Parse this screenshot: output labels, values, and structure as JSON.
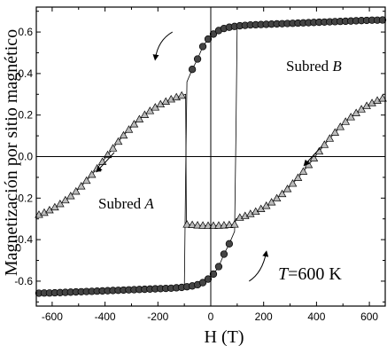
{
  "chart_data": {
    "type": "scatter",
    "xlabel": "H (T)",
    "ylabel": "Magnetización por sitio magnético",
    "xlim": [
      -660,
      660
    ],
    "ylim": [
      -0.72,
      0.72
    ],
    "x_ticks": [
      -600,
      -400,
      -200,
      0,
      200,
      400,
      600
    ],
    "y_ticks": [
      -0.6,
      -0.4,
      -0.2,
      0.0,
      0.2,
      0.4,
      0.6
    ],
    "x_tick_labels": [
      "-600",
      "-400",
      "-200",
      "0",
      "200",
      "400",
      "600"
    ],
    "y_tick_labels": [
      "-0.6",
      "-0.4",
      "-0.2",
      "0.0",
      "0.2",
      "0.4",
      "0.6"
    ],
    "grid": false,
    "annotations": {
      "subred_b": {
        "text": "Subred ",
        "italic": "B"
      },
      "subred_a": {
        "text": "Subred ",
        "italic": "A"
      },
      "temperature": {
        "italic": "T",
        "text": "=600 K"
      }
    },
    "series": [
      {
        "marker": "circle",
        "color": "#444444",
        "branches": [
          {
            "x": [
              -650,
              -630,
              -610,
              -590,
              -570,
              -550,
              -530,
              -510,
              -490,
              -470,
              -450,
              -430,
              -410,
              -390,
              -370,
              -350,
              -330,
              -310,
              -290,
              -270,
              -250,
              -230,
              -210,
              -190,
              -170,
              -150,
              -130,
              -110,
              -90,
              -70,
              -50,
              -30,
              -10,
              10,
              30,
              50,
              70
            ],
            "y": [
              -0.658,
              -0.657,
              -0.657,
              -0.656,
              -0.655,
              -0.654,
              -0.653,
              -0.652,
              -0.651,
              -0.65,
              -0.649,
              -0.648,
              -0.647,
              -0.646,
              -0.645,
              -0.644,
              -0.643,
              -0.642,
              -0.641,
              -0.64,
              -0.639,
              -0.638,
              -0.637,
              -0.636,
              -0.635,
              -0.634,
              -0.632,
              -0.63,
              -0.627,
              -0.623,
              -0.617,
              -0.607,
              -0.59,
              -0.566,
              -0.53,
              -0.47,
              -0.42
            ]
          },
          {
            "x": [
              -70,
              -50,
              -30,
              -10,
              10,
              30,
              50,
              70,
              90,
              110,
              130,
              150,
              170,
              190,
              210,
              230,
              250,
              270,
              290,
              310,
              330,
              350,
              370,
              390,
              410,
              430,
              450,
              470,
              490,
              510,
              530,
              550,
              570,
              590,
              610,
              630,
              650
            ],
            "y": [
              0.42,
              0.47,
              0.53,
              0.566,
              0.59,
              0.607,
              0.617,
              0.623,
              0.627,
              0.63,
              0.632,
              0.634,
              0.635,
              0.636,
              0.637,
              0.638,
              0.639,
              0.64,
              0.641,
              0.642,
              0.643,
              0.644,
              0.645,
              0.646,
              0.647,
              0.648,
              0.649,
              0.65,
              0.651,
              0.652,
              0.653,
              0.654,
              0.655,
              0.656,
              0.657,
              0.657,
              0.658
            ]
          }
        ]
      },
      {
        "marker": "triangle",
        "color": "#bbbbbb",
        "branches": [
          {
            "x": [
              -650,
              -630,
              -610,
              -590,
              -570,
              -550,
              -530,
              -510,
              -490,
              -470,
              -450,
              -430,
              -410,
              -390,
              -370,
              -350,
              -330,
              -310,
              -290,
              -270,
              -250,
              -230,
              -210,
              -190,
              -170,
              -150,
              -130,
              -110
            ],
            "y": [
              -0.28,
              -0.27,
              -0.258,
              -0.244,
              -0.228,
              -0.21,
              -0.19,
              -0.168,
              -0.143,
              -0.116,
              -0.087,
              -0.057,
              -0.025,
              0.008,
              0.04,
              0.072,
              0.102,
              0.13,
              0.156,
              0.18,
              0.201,
              0.22,
              0.237,
              0.252,
              0.265,
              0.276,
              0.286,
              0.294
            ]
          },
          {
            "x": [
              -90,
              -70,
              -50,
              -30,
              -10,
              10,
              30,
              50,
              70,
              90
            ],
            "y": [
              -0.327,
              -0.329,
              -0.331,
              -0.332,
              -0.333,
              -0.333,
              -0.332,
              -0.331,
              -0.329,
              -0.327
            ]
          },
          {
            "x": [
              110,
              130,
              150,
              170,
              190,
              210,
              230,
              250,
              270,
              290,
              310,
              330,
              350,
              370,
              390,
              410,
              430,
              450,
              470,
              490,
              510,
              530,
              550,
              570,
              590,
              610,
              630,
              650
            ],
            "y": [
              -0.294,
              -0.286,
              -0.276,
              -0.265,
              -0.252,
              -0.237,
              -0.22,
              -0.201,
              -0.18,
              -0.156,
              -0.13,
              -0.102,
              -0.072,
              -0.04,
              -0.008,
              0.025,
              0.057,
              0.087,
              0.116,
              0.143,
              0.168,
              0.19,
              0.21,
              0.228,
              0.244,
              0.258,
              0.27,
              0.28
            ]
          }
        ]
      }
    ]
  }
}
